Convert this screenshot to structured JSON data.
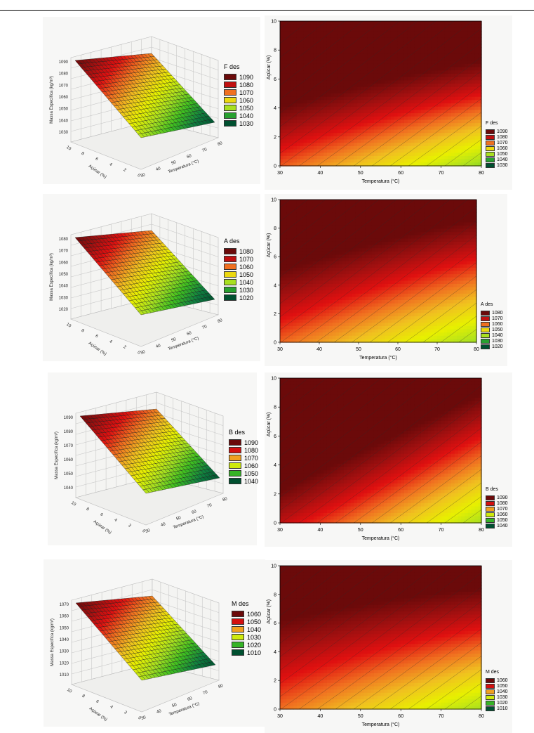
{
  "chart_data": [
    {
      "type": "surface",
      "legend_title": "F des",
      "legend_values": [
        "1090",
        "1080",
        "1070",
        "1060",
        "1050",
        "1040",
        "1030"
      ],
      "z_axis_label": "Massa Específica (kg/m³)",
      "z_ticks": [
        "1090",
        "1080",
        "1070",
        "1060",
        "1050",
        "1040",
        "1030"
      ],
      "x_axis_label": "Açúcar (%)",
      "y_axis_label": "Temperatura (°C)",
      "x_ticks": [
        "10",
        "8",
        "6",
        "4",
        "2",
        "0"
      ],
      "y_ticks": [
        "30",
        "40",
        "50",
        "60",
        "70",
        "80"
      ]
    },
    {
      "type": "heatmap",
      "legend_title": "F des",
      "legend_values": [
        "1090",
        "1080",
        "1070",
        "1060",
        "1050",
        "1040",
        "1030"
      ],
      "xlabel": "Temperatura (°C)",
      "ylabel": "Açúcar (%)",
      "x_ticks": [
        "30",
        "40",
        "50",
        "60",
        "70",
        "80"
      ],
      "y_ticks": [
        "0",
        "2",
        "4",
        "6",
        "8",
        "10"
      ],
      "xlim": [
        30,
        80
      ],
      "ylim": [
        0,
        10
      ],
      "z_model": {
        "intercept": 1060,
        "sugar_coef": 6.0,
        "temp_coef": -0.55,
        "curv": 0.03
      },
      "zlim": [
        1025,
        1095
      ]
    },
    {
      "type": "surface",
      "legend_title": "A des",
      "legend_values": [
        "1080",
        "1070",
        "1060",
        "1050",
        "1040",
        "1030",
        "1020"
      ],
      "z_axis_label": "Massa Específica (kg/m³)",
      "z_ticks": [
        "1080",
        "1070",
        "1060",
        "1050",
        "1040",
        "1030",
        "1020"
      ],
      "x_axis_label": "Açúcar (%)",
      "y_axis_label": "Temperatura (°C)",
      "x_ticks": [
        "10",
        "8",
        "6",
        "4",
        "2",
        "0"
      ],
      "y_ticks": [
        "30",
        "40",
        "50",
        "60",
        "70",
        "80"
      ]
    },
    {
      "type": "heatmap",
      "legend_title": "A des",
      "legend_values": [
        "1080",
        "1070",
        "1060",
        "1050",
        "1040",
        "1030",
        "1020"
      ],
      "xlabel": "Temperatura (°C)",
      "ylabel": "Açúcar (%)",
      "x_ticks": [
        "30",
        "40",
        "50",
        "60",
        "70",
        "80"
      ],
      "y_ticks": [
        "0",
        "2",
        "4",
        "6",
        "8",
        "10"
      ],
      "xlim": [
        30,
        80
      ],
      "ylim": [
        0,
        10
      ],
      "z_model": {
        "intercept": 1050,
        "sugar_coef": 5.0,
        "temp_coef": -0.5,
        "curv": 0.02
      },
      "zlim": [
        1015,
        1085
      ]
    },
    {
      "type": "surface",
      "legend_title": "B des",
      "legend_values": [
        "1090",
        "1080",
        "1070",
        "1060",
        "1050",
        "1040"
      ],
      "z_axis_label": "Massa Específica (kg/m³)",
      "z_ticks": [
        "1090",
        "1080",
        "1070",
        "1060",
        "1050",
        "1040"
      ],
      "x_axis_label": "Açúcar (%)",
      "y_axis_label": "Temperatura (°C)",
      "x_ticks": [
        "10",
        "8",
        "6",
        "4",
        "2",
        "0"
      ],
      "y_ticks": [
        "30",
        "40",
        "50",
        "60",
        "70",
        "80"
      ]
    },
    {
      "type": "heatmap",
      "legend_title": "B des",
      "legend_values": [
        "1090",
        "1080",
        "1070",
        "1060",
        "1050",
        "1040"
      ],
      "xlabel": "Temperatura (°C)",
      "ylabel": "Açúcar (%)",
      "x_ticks": [
        "30",
        "40",
        "50",
        "60",
        "70",
        "80"
      ],
      "y_ticks": [
        "0",
        "2",
        "4",
        "6",
        "8",
        "10"
      ],
      "xlim": [
        30,
        80
      ],
      "ylim": [
        0,
        10
      ],
      "z_model": {
        "intercept": 1070,
        "sugar_coef": 4.5,
        "temp_coef": -0.6,
        "curv": 0.0
      },
      "zlim": [
        1035,
        1095
      ]
    },
    {
      "type": "surface",
      "legend_title": "M des",
      "legend_values": [
        "1060",
        "1050",
        "1040",
        "1030",
        "1020",
        "1010"
      ],
      "z_axis_label": "Massa Específica (kg/m³)",
      "z_ticks": [
        "1070",
        "1060",
        "1050",
        "1040",
        "1030",
        "1020",
        "1010"
      ],
      "x_axis_label": "Açúcar (%)",
      "y_axis_label": "Temperatura (°C)",
      "x_ticks": [
        "10",
        "8",
        "6",
        "4",
        "2",
        "0"
      ],
      "y_ticks": [
        "30",
        "40",
        "50",
        "60",
        "70",
        "80"
      ]
    },
    {
      "type": "heatmap",
      "legend_title": "M des",
      "legend_values": [
        "1060",
        "1050",
        "1040",
        "1030",
        "1020",
        "1010"
      ],
      "xlabel": "Temperatura (°C)",
      "ylabel": "Açúcar (%)",
      "x_ticks": [
        "30",
        "40",
        "50",
        "60",
        "70",
        "80"
      ],
      "y_ticks": [
        "0",
        "2",
        "4",
        "6",
        "8",
        "10"
      ],
      "xlim": [
        30,
        80
      ],
      "ylim": [
        0,
        10
      ],
      "z_model": {
        "intercept": 1035,
        "sugar_coef": 4.0,
        "temp_coef": -0.4,
        "curv": 0.03
      },
      "zlim": [
        1005,
        1065
      ]
    }
  ],
  "palette": [
    "#6b0a0a",
    "#a01010",
    "#e01010",
    "#f07020",
    "#f0c020",
    "#e8f000",
    "#a8e020",
    "#40c020",
    "#108040",
    "#005030"
  ]
}
